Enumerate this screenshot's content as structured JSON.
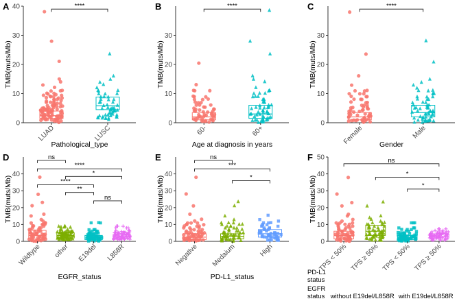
{
  "colors": {
    "red": "#f8766d",
    "olive": "#a3a500",
    "green": "#7cae00",
    "teal": "#00bfc4",
    "cyan": "#00b8d4",
    "blue": "#619cff",
    "magenta": "#e76bf3",
    "axis": "#333333"
  },
  "chart_data": [
    {
      "type": "scatter",
      "panel_label": "A",
      "title": "",
      "xlabel": "Pathological_type",
      "ylabel": "TMB(muts/Mb)",
      "ylim": [
        0,
        40
      ],
      "yticks": [
        0,
        10,
        20,
        30,
        40
      ],
      "categories": [
        "LUAD",
        "LUSC"
      ],
      "rotate_x": true,
      "groups": [
        {
          "name": "LUAD",
          "shape": "circle",
          "color": "#f8766d",
          "box": {
            "q1": 1.5,
            "median": 2.4,
            "q3": 4.0
          },
          "points": [
            38.2,
            28.0,
            21.0,
            15.0,
            14.0,
            13.0,
            12.0,
            11.0,
            10.0,
            9.5,
            9.0,
            8.5,
            8.0,
            7.5,
            7.0,
            6.5,
            6.0,
            5.5,
            5.0,
            4.5,
            4.0,
            3.5,
            3.0,
            2.5,
            2.0,
            1.5,
            1.0,
            0.5
          ]
        },
        {
          "name": "LUSC",
          "shape": "triangle",
          "color": "#00bfc4",
          "box": {
            "q1": 4.5,
            "median": 5.8,
            "q3": 8.8
          },
          "points": [
            23.5,
            16.0,
            15.0,
            14.0,
            13.0,
            12.0,
            11.0,
            10.0,
            9.0,
            8.0,
            7.0,
            6.0,
            5.0,
            4.0,
            3.0,
            2.0,
            1.5
          ]
        }
      ],
      "brackets": [
        {
          "from": 0,
          "to": 1,
          "label": "****",
          "y": 39
        }
      ]
    },
    {
      "type": "scatter",
      "panel_label": "B",
      "title": "",
      "xlabel": "Age at diagnosis in years",
      "ylabel": "TMB(muts/Mb)",
      "ylim": [
        0,
        40
      ],
      "yticks": [
        0,
        10,
        20,
        30
      ],
      "categories": [
        "60-",
        "60+"
      ],
      "rotate_x": true,
      "groups": [
        {
          "name": "60-",
          "shape": "circle",
          "color": "#f8766d",
          "box": {
            "q1": 1.0,
            "median": 2.0,
            "q3": 3.5
          },
          "points": [
            20.5,
            13.0,
            11.0,
            9.0,
            8.0,
            7.0,
            6.0,
            5.0,
            4.0,
            3.0,
            2.0,
            1.0,
            0.5
          ]
        },
        {
          "name": "60+",
          "shape": "triangle",
          "color": "#00bfc4",
          "box": {
            "q1": 1.5,
            "median": 3.0,
            "q3": 6.0
          },
          "points": [
            38.5,
            28.0,
            23.5,
            16.0,
            15.0,
            14.0,
            12.0,
            11.0,
            10.0,
            9.0,
            8.0,
            7.0,
            6.0,
            5.0,
            4.0,
            3.0,
            2.0,
            1.0,
            0.5
          ]
        }
      ],
      "brackets": [
        {
          "from": 0,
          "to": 1,
          "label": "****",
          "y": 39
        }
      ]
    },
    {
      "type": "scatter",
      "panel_label": "C",
      "title": "",
      "xlabel": "Gender",
      "ylabel": "TMB(muts/Mb)",
      "ylim": [
        0,
        40
      ],
      "yticks": [
        0,
        10,
        20,
        30
      ],
      "categories": [
        "Female",
        "Male"
      ],
      "rotate_x": true,
      "groups": [
        {
          "name": "Female",
          "shape": "circle",
          "color": "#f8766d",
          "box": {
            "q1": 1.0,
            "median": 2.0,
            "q3": 3.5
          },
          "points": [
            38.0,
            23.5,
            16.0,
            13.0,
            11.0,
            10.0,
            9.0,
            8.0,
            7.0,
            6.0,
            5.0,
            4.0,
            3.0,
            2.0,
            1.0,
            0.5
          ]
        },
        {
          "name": "Male",
          "shape": "triangle",
          "color": "#00bfc4",
          "box": {
            "q1": 2.0,
            "median": 3.5,
            "q3": 6.0
          },
          "points": [
            28.0,
            21.0,
            15.0,
            14.0,
            13.0,
            12.0,
            11.0,
            10.0,
            9.0,
            8.0,
            7.0,
            6.0,
            5.0,
            4.0,
            3.0,
            2.0,
            1.0,
            0.5
          ]
        }
      ],
      "brackets": [
        {
          "from": 0,
          "to": 1,
          "label": "****",
          "y": 39
        }
      ]
    },
    {
      "type": "scatter",
      "panel_label": "D",
      "title": "",
      "xlabel": "EGFR_status",
      "ylabel": "TMB(muts/Mb)",
      "ylim": [
        0,
        50
      ],
      "yticks": [
        0,
        10,
        20,
        30,
        40
      ],
      "categories": [
        "Wildtype",
        "other",
        "E19del",
        "L858R"
      ],
      "rotate_x": true,
      "groups": [
        {
          "name": "Wildtype",
          "shape": "circle",
          "color": "#f8766d",
          "box": {
            "q1": 1.5,
            "median": 3.5,
            "q3": 6.5
          },
          "points": [
            38.0,
            28.0,
            23.0,
            21.0,
            16.0,
            15.0,
            13.0,
            12.0,
            11.0,
            10.0,
            9.0,
            8.0,
            7.0,
            6.0,
            5.0,
            4.0,
            3.0,
            2.0,
            1.0,
            0.5
          ]
        },
        {
          "name": "other",
          "shape": "triangle",
          "color": "#7cae00",
          "box": {
            "q1": 2.0,
            "median": 3.5,
            "q3": 5.0
          },
          "points": [
            9.0,
            8.5,
            7.0,
            6.0,
            5.5,
            5.0,
            4.5,
            4.0,
            3.5,
            3.0,
            2.5,
            2.0,
            1.5,
            1.0
          ]
        },
        {
          "name": "E19del",
          "shape": "square",
          "color": "#00bfc4",
          "box": {
            "q1": 1.0,
            "median": 2.0,
            "q3": 3.5
          },
          "points": [
            11.0,
            7.0,
            6.0,
            5.0,
            4.0,
            3.0,
            2.5,
            2.0,
            1.5,
            1.0,
            0.5
          ]
        },
        {
          "name": "L858R",
          "shape": "plus",
          "color": "#e76bf3",
          "box": {
            "q1": 1.5,
            "median": 2.5,
            "q3": 4.0
          },
          "points": [
            9.0,
            8.0,
            6.5,
            5.5,
            5.0,
            4.5,
            4.0,
            3.5,
            3.0,
            2.5,
            2.0,
            1.5,
            1.0
          ]
        }
      ],
      "brackets": [
        {
          "from": 0,
          "to": 1,
          "label": "ns",
          "y": 48
        },
        {
          "from": 0,
          "to": 3,
          "label": "****",
          "y": 43
        },
        {
          "from": 1,
          "to": 3,
          "label": "*",
          "y": 38.5
        },
        {
          "from": 0,
          "to": 2,
          "label": "****",
          "y": 33.5
        },
        {
          "from": 1,
          "to": 2,
          "label": "**",
          "y": 29
        },
        {
          "from": 2,
          "to": 3,
          "label": "ns",
          "y": 24
        }
      ]
    },
    {
      "type": "scatter",
      "panel_label": "E",
      "title": "",
      "xlabel": "PD-L1_status",
      "ylabel": "TMB(muts/Mb)",
      "ylim": [
        0,
        50
      ],
      "yticks": [
        0,
        10,
        20,
        30,
        40
      ],
      "categories": [
        "Negative",
        "Medaium",
        "High"
      ],
      "rotate_x": true,
      "groups": [
        {
          "name": "Negative",
          "shape": "circle",
          "color": "#f8766d",
          "box": {
            "q1": 1.0,
            "median": 2.5,
            "q3": 4.5
          },
          "points": [
            38.0,
            28.0,
            21.0,
            16.0,
            13.0,
            12.0,
            11.0,
            10.0,
            9.0,
            8.0,
            7.0,
            6.0,
            5.0,
            4.0,
            3.0,
            2.0,
            1.0,
            0.5
          ]
        },
        {
          "name": "Medaium",
          "shape": "triangle",
          "color": "#7cae00",
          "box": {
            "q1": 1.5,
            "median": 3.0,
            "q3": 4.5
          },
          "points": [
            23.5,
            21.0,
            15.0,
            13.0,
            11.0,
            10.0,
            9.0,
            8.0,
            7.0,
            6.0,
            5.0,
            4.0,
            3.0,
            2.0,
            1.0,
            0.5
          ]
        },
        {
          "name": "High",
          "shape": "square",
          "color": "#619cff",
          "box": {
            "q1": 2.5,
            "median": 4.5,
            "q3": 7.0
          },
          "points": [
            15.5,
            13.0,
            12.0,
            11.0,
            10.0,
            9.0,
            8.0,
            7.0,
            6.0,
            5.0,
            4.0,
            3.0,
            2.0,
            1.0
          ]
        }
      ],
      "brackets": [
        {
          "from": 0,
          "to": 1,
          "label": "ns",
          "y": 48
        },
        {
          "from": 0,
          "to": 2,
          "label": "***",
          "y": 43
        },
        {
          "from": 1,
          "to": 2,
          "label": "*",
          "y": 36
        }
      ]
    },
    {
      "type": "scatter",
      "panel_label": "F",
      "title": "",
      "xlabel": "",
      "ylabel": "TMB(muts/Mb)",
      "ylim": [
        0,
        50
      ],
      "yticks": [
        0,
        10,
        20,
        30,
        40,
        50
      ],
      "categories": [
        "TPS < 50%",
        "TPS ≥ 50%",
        "TPS < 50%",
        "TPS ≥ 50%"
      ],
      "rotate_x": true,
      "groups": [
        {
          "name": "TPS < 50% (without)",
          "shape": "circle",
          "color": "#f8766d",
          "box": {
            "q1": 1.5,
            "median": 3.5,
            "q3": 6.0
          },
          "points": [
            38.0,
            28.0,
            23.0,
            21.0,
            16.0,
            15.0,
            13.0,
            12.0,
            11.0,
            10.0,
            9.0,
            8.0,
            7.0,
            6.0,
            5.0,
            4.0,
            3.0,
            2.0,
            1.0,
            0.5
          ]
        },
        {
          "name": "TPS ≥ 50% (without)",
          "shape": "triangle",
          "color": "#7cae00",
          "box": {
            "q1": 3.5,
            "median": 6.0,
            "q3": 9.5
          },
          "points": [
            23.5,
            21.0,
            15.0,
            14.0,
            13.0,
            12.0,
            11.0,
            10.0,
            9.0,
            8.0,
            7.0,
            6.0,
            5.0,
            4.0,
            3.0,
            2.0,
            1.0
          ]
        },
        {
          "name": "TPS < 50% (with)",
          "shape": "square",
          "color": "#00bfc4",
          "box": {
            "q1": 1.0,
            "median": 2.0,
            "q3": 3.5
          },
          "points": [
            11.0,
            8.0,
            7.0,
            6.0,
            5.0,
            4.0,
            3.0,
            2.5,
            2.0,
            1.5,
            1.0,
            0.5
          ]
        },
        {
          "name": "TPS ≥ 50% (with)",
          "shape": "plus",
          "color": "#e76bf3",
          "box": {
            "q1": 2.0,
            "median": 3.0,
            "q3": 4.5
          },
          "points": [
            7.5,
            6.5,
            5.5,
            5.0,
            4.5,
            4.0,
            3.5,
            3.0,
            2.5,
            2.0,
            1.5,
            1.0
          ]
        }
      ],
      "brackets": [
        {
          "from": 0,
          "to": 3,
          "label": "ns",
          "y": 46
        },
        {
          "from": 1,
          "to": 3,
          "label": "*",
          "y": 38
        },
        {
          "from": 2,
          "to": 3,
          "label": "*",
          "y": 31
        }
      ],
      "row_labels": {
        "pdl1_label": "PD-L1",
        "pdl1_status": "status",
        "egfr_label": "EGFR",
        "egfr_status": "status",
        "egfr_groups": [
          "without E19del/L858R",
          "with E19del/L858R"
        ]
      }
    }
  ]
}
